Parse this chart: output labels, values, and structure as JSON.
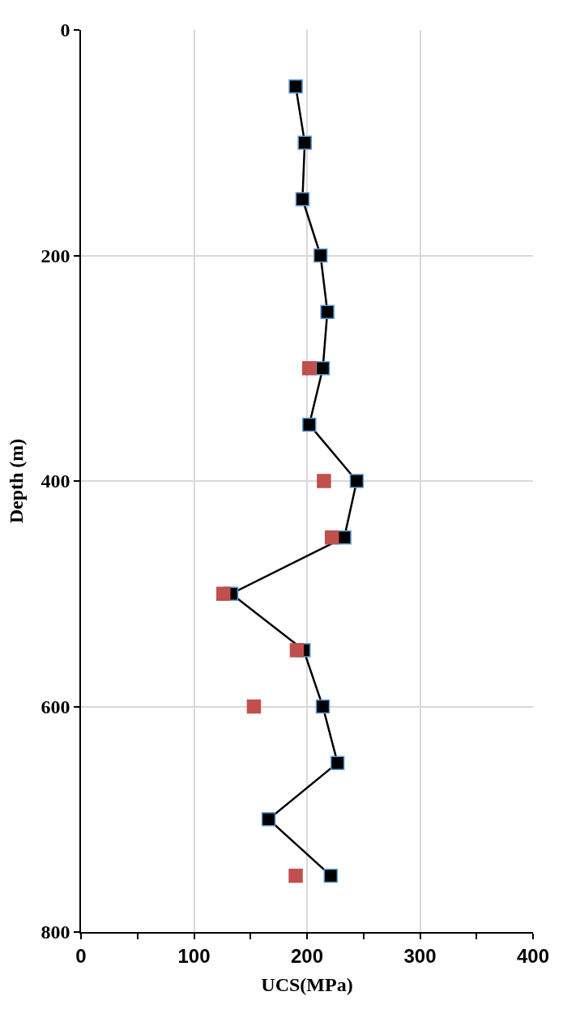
{
  "chart_data": {
    "type": "line",
    "xlabel": "UCS(MPa)",
    "ylabel": "Depth (m)",
    "xlim": [
      0,
      400
    ],
    "xticks": [
      0,
      {
        "value": 50,
        "label": null
      },
      100,
      {
        "value": 150,
        "label": null
      },
      200,
      {
        "value": 250,
        "label": null
      },
      300,
      {
        "value": 350,
        "label": null
      },
      400
    ],
    "ylim": [
      800,
      0
    ],
    "yticks": [
      0,
      200,
      400,
      600,
      800
    ],
    "grid": true,
    "legend": false,
    "marker": "square",
    "line_style": "solid",
    "series": [
      {
        "color": "#000000",
        "x": [
          190,
          198,
          196,
          212,
          218,
          214,
          202,
          244,
          233,
          133,
          197,
          214,
          227,
          166,
          221
        ],
        "values": [
          50,
          100,
          150,
          200,
          250,
          300,
          350,
          400,
          450,
          500,
          550,
          600,
          650,
          700,
          750
        ]
      },
      {
        "type": "scatter",
        "color": "#c0504d",
        "x": [
          202,
          215,
          222,
          126,
          191,
          153,
          190
        ],
        "values": [
          300,
          400,
          450,
          500,
          550,
          600,
          750
        ]
      }
    ]
  }
}
